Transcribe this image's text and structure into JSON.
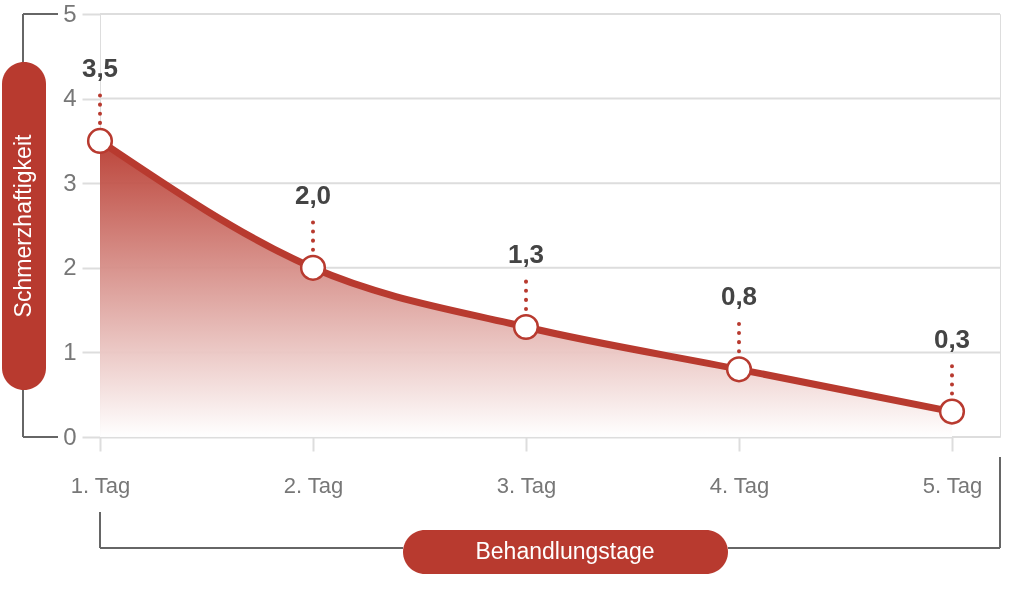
{
  "chart_data": {
    "type": "area",
    "xlabel": "Behandlungstage",
    "ylabel": "Schmerzhaftigkeit",
    "categories": [
      "1. Tag",
      "2. Tag",
      "3. Tag",
      "4. Tag",
      "5. Tag"
    ],
    "series": [
      {
        "color": "#b83a2f",
        "values": [
          3.5,
          2.0,
          1.3,
          0.8,
          0.3
        ],
        "value_labels": [
          "3,5",
          "2,0",
          "1,3",
          "0,8",
          "0,3"
        ]
      }
    ],
    "ylim": [
      0,
      5
    ],
    "yticks": [
      0,
      1,
      2,
      3,
      4,
      5
    ],
    "grid": "y",
    "marker": "circle",
    "line_style": "solid"
  }
}
